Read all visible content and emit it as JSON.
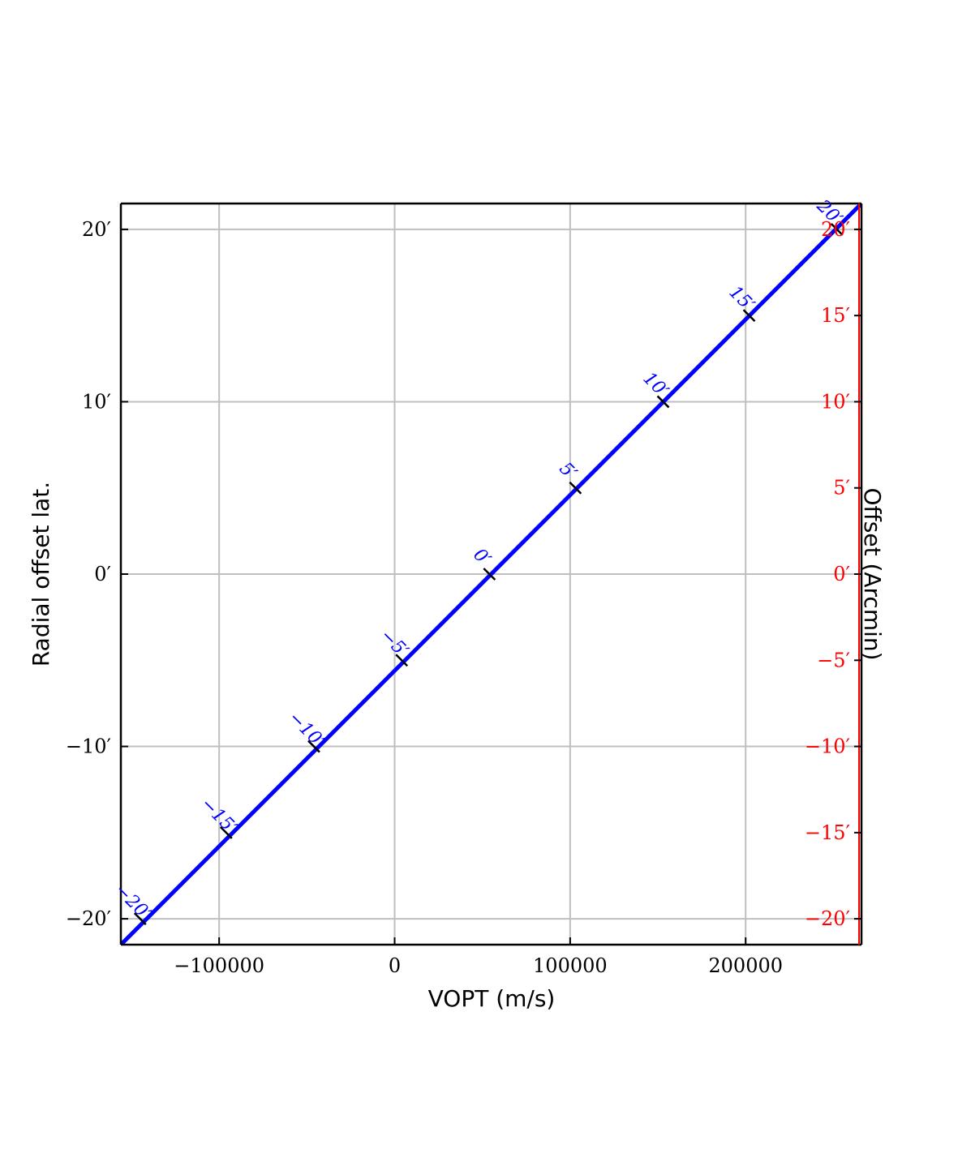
{
  "chart_data": {
    "type": "line",
    "xlabel": "VOPT (m/s)",
    "ylabel": "Radial offset lat.",
    "y2label": "Offset (Arcmin)",
    "xlim": [
      -156000,
      266000
    ],
    "ylim": [
      -21.5,
      21.5
    ],
    "x_ticks": [
      {
        "value": -100000,
        "label": "−100000"
      },
      {
        "value": 0,
        "label": "0"
      },
      {
        "value": 100000,
        "label": "100000"
      },
      {
        "value": 200000,
        "label": "200000"
      }
    ],
    "y_ticks": [
      {
        "value": -20,
        "label": "−20′"
      },
      {
        "value": -10,
        "label": "−10′"
      },
      {
        "value": 0,
        "label": "0′"
      },
      {
        "value": 10,
        "label": "10′"
      },
      {
        "value": 20,
        "label": "20′"
      }
    ],
    "y2_ticks": [
      {
        "value": -20,
        "label": "−20′"
      },
      {
        "value": -15,
        "label": "−15′"
      },
      {
        "value": -10,
        "label": "−10′"
      },
      {
        "value": -5,
        "label": "−5′"
      },
      {
        "value": 0,
        "label": "0′"
      },
      {
        "value": 5,
        "label": "5′"
      },
      {
        "value": 10,
        "label": "10′"
      },
      {
        "value": 15,
        "label": "15′"
      },
      {
        "value": 20,
        "label": "20′"
      }
    ],
    "grid": true,
    "series": [
      {
        "color": "#0000ff",
        "x": [
          -156000,
          266000
        ],
        "y": [
          -21.5,
          21.5
        ]
      }
    ],
    "line_ticks": [
      {
        "x": -145000,
        "y": -20,
        "label": "−20′"
      },
      {
        "x": -96000,
        "y": -15,
        "label": "−15′"
      },
      {
        "x": -46000,
        "y": -10,
        "label": "−10′"
      },
      {
        "x": 4000,
        "y": -5,
        "label": "−5′"
      },
      {
        "x": 54000,
        "y": 0,
        "label": "0′"
      },
      {
        "x": 103000,
        "y": 5,
        "label": "5′"
      },
      {
        "x": 153000,
        "y": 10,
        "label": "10′"
      },
      {
        "x": 202000,
        "y": 15,
        "label": "15′"
      },
      {
        "x": 252000,
        "y": 20,
        "label": "20′"
      }
    ],
    "colors": {
      "series": "#0000ff",
      "right_axis": "#ff0000",
      "grid": "#bfbfbf",
      "axes": "#000000"
    }
  }
}
